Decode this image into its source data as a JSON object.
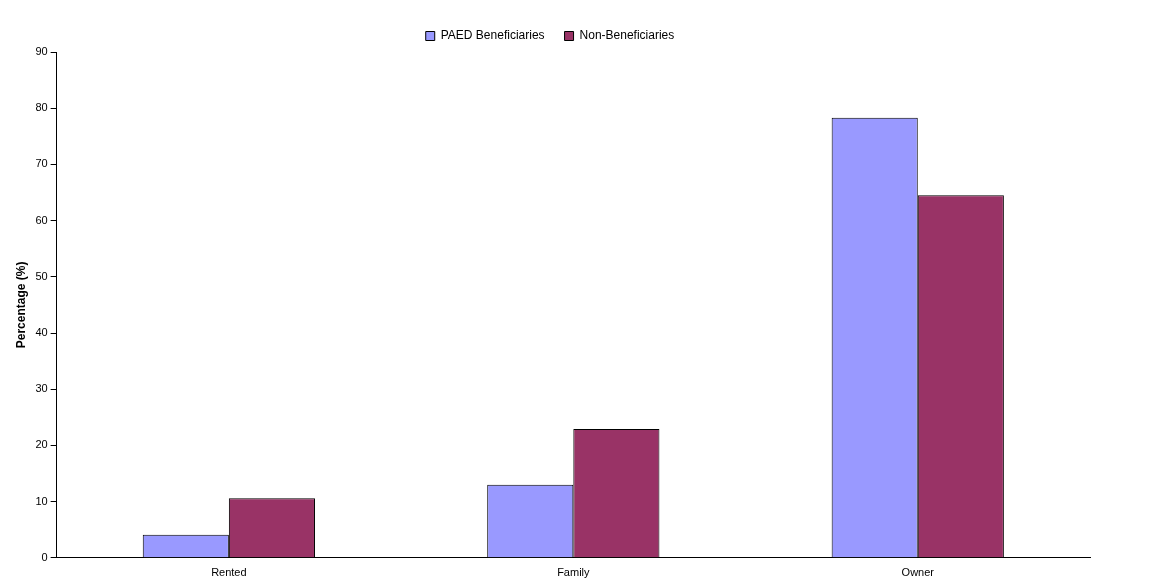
{
  "chart_data": {
    "type": "bar",
    "ylabel": "Percentage (%)",
    "categories": [
      "Rented",
      "Family",
      "Owner"
    ],
    "series": [
      {
        "name": "PAED Beneficiaries",
        "color": "#9999ff",
        "values": [
          4.1,
          13.0,
          78.3
        ]
      },
      {
        "name": "Non-Beneficiaries",
        "color": "#993366",
        "values": [
          10.6,
          22.9,
          64.5
        ]
      }
    ],
    "ylim": [
      0,
      90
    ],
    "yticks": [
      0,
      10,
      20,
      30,
      40,
      50,
      60,
      70,
      80,
      90
    ],
    "grid": false,
    "legend": "top"
  }
}
